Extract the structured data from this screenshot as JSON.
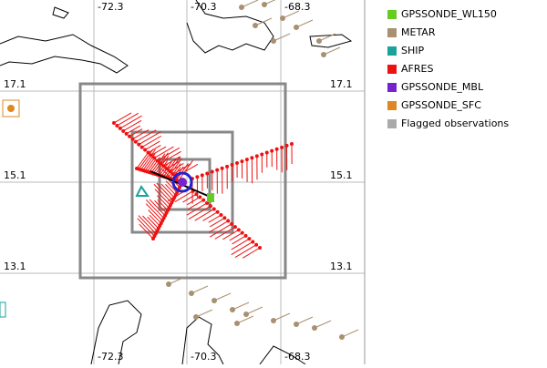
{
  "map": {
    "lon_labels_top": [
      "-72.3",
      "-70.3",
      "-68.3"
    ],
    "lon_labels_bottom": [
      "-72.3",
      "-70.3",
      "-68.3"
    ],
    "lat_labels_left": [
      "17.1",
      "15.1",
      "13.1"
    ],
    "lat_labels_right": [
      "17.1",
      "15.1",
      "13.1"
    ]
  },
  "legend": {
    "items": [
      {
        "label": "GPSSONDE_WL150",
        "color": "#66cc22"
      },
      {
        "label": "METAR",
        "color": "#a89070"
      },
      {
        "label": "SHIP",
        "color": "#1aa39a"
      },
      {
        "label": "AFRES",
        "color": "#ee1111"
      },
      {
        "label": "GPSSONDE_MBL",
        "color": "#7722cc"
      },
      {
        "label": "GPSSONDE_SFC",
        "color": "#dd8822"
      },
      {
        "label": "Flagged observations",
        "color": "#aaaaaa"
      }
    ]
  }
}
